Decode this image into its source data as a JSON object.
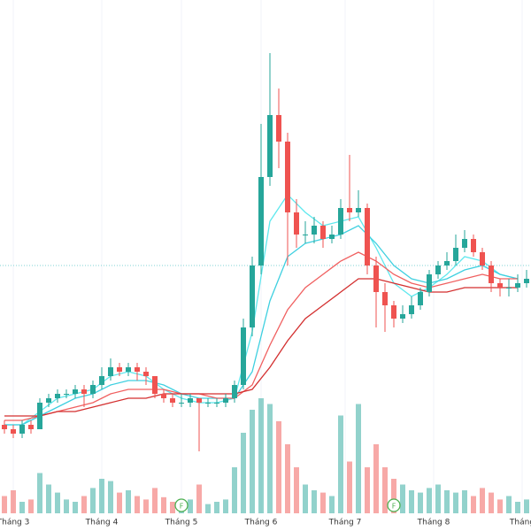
{
  "chart_data": {
    "type": "candlestick",
    "up_color": "#26a69a",
    "down_color": "#ef5350",
    "xlim": [
      -0.5,
      59.5
    ],
    "ylim": [
      0,
      100
    ],
    "vlim": [
      0,
      100
    ],
    "grid": true,
    "xticks": [
      {
        "value": 1,
        "label": "Tháng 3"
      },
      {
        "value": 11,
        "label": "Tháng 4"
      },
      {
        "value": 20,
        "label": "Tháng 5"
      },
      {
        "value": 29,
        "label": "Tháng 6"
      },
      {
        "value": 38.5,
        "label": "Tháng 7"
      },
      {
        "value": 48.5,
        "label": "Tháng 8"
      },
      {
        "value": 58.5,
        "label": "Tháng"
      }
    ],
    "ohlc": [
      [
        4,
        5,
        2,
        3
      ],
      [
        3,
        4,
        1,
        2
      ],
      [
        2,
        5,
        1,
        4
      ],
      [
        4,
        5,
        2,
        3
      ],
      [
        3,
        10,
        3,
        9
      ],
      [
        9,
        11,
        8,
        10
      ],
      [
        10,
        12,
        9,
        11
      ],
      [
        11,
        12,
        10,
        11
      ],
      [
        11,
        13,
        10,
        12
      ],
      [
        12,
        13,
        8,
        11
      ],
      [
        11,
        14,
        10,
        13
      ],
      [
        13,
        17,
        12,
        15
      ],
      [
        15,
        19,
        14,
        17
      ],
      [
        17,
        18,
        15,
        16
      ],
      [
        16,
        18,
        15,
        17
      ],
      [
        17,
        18,
        14,
        16
      ],
      [
        16,
        17,
        13,
        15
      ],
      [
        15,
        15,
        10,
        11
      ],
      [
        11,
        12,
        9,
        10
      ],
      [
        10,
        11,
        8,
        9
      ],
      [
        9,
        11,
        8,
        9
      ],
      [
        9,
        11,
        8,
        10
      ],
      [
        10,
        10,
        -2,
        9
      ],
      [
        9,
        10,
        8,
        9
      ],
      [
        9,
        10,
        8,
        9
      ],
      [
        9,
        11,
        8,
        10
      ],
      [
        10,
        14,
        9,
        13
      ],
      [
        13,
        28,
        12,
        26
      ],
      [
        26,
        42,
        24,
        40
      ],
      [
        40,
        72,
        38,
        60
      ],
      [
        60,
        88,
        58,
        74
      ],
      [
        74,
        80,
        62,
        68
      ],
      [
        68,
        70,
        40,
        52
      ],
      [
        52,
        55,
        44,
        47
      ],
      [
        47,
        50,
        45,
        47
      ],
      [
        47,
        51,
        45,
        49
      ],
      [
        49,
        50,
        44,
        46
      ],
      [
        46,
        49,
        45,
        47
      ],
      [
        47,
        55,
        46,
        53
      ],
      [
        53,
        65,
        50,
        52
      ],
      [
        52,
        57,
        51,
        53
      ],
      [
        53,
        54,
        38,
        40
      ],
      [
        40,
        42,
        26,
        34
      ],
      [
        34,
        36,
        25,
        31
      ],
      [
        31,
        32,
        26,
        28
      ],
      [
        28,
        31,
        27,
        29
      ],
      [
        29,
        33,
        28,
        31
      ],
      [
        31,
        35,
        30,
        34
      ],
      [
        34,
        39,
        33,
        38
      ],
      [
        38,
        41,
        37,
        40
      ],
      [
        40,
        43,
        39,
        41
      ],
      [
        41,
        47,
        40,
        44
      ],
      [
        44,
        48,
        43,
        46
      ],
      [
        46,
        47,
        42,
        43
      ],
      [
        43,
        44,
        39,
        40
      ],
      [
        40,
        41,
        34,
        36
      ],
      [
        36,
        37,
        33,
        35
      ],
      [
        35,
        37,
        33,
        35
      ],
      [
        35,
        38,
        34,
        36
      ],
      [
        36,
        39,
        35,
        37
      ]
    ],
    "volume": [
      15,
      20,
      10,
      12,
      35,
      25,
      18,
      12,
      10,
      15,
      22,
      30,
      28,
      18,
      20,
      15,
      12,
      22,
      14,
      10,
      10,
      12,
      25,
      8,
      10,
      12,
      40,
      70,
      90,
      100,
      95,
      80,
      60,
      40,
      25,
      20,
      18,
      15,
      85,
      45,
      95,
      40,
      60,
      40,
      30,
      25,
      20,
      18,
      22,
      25,
      20,
      18,
      20,
      15,
      22,
      18,
      12,
      15,
      10,
      12
    ],
    "ma_x": [
      0,
      2,
      4,
      6,
      8,
      10,
      12,
      14,
      16,
      18,
      20,
      22,
      24,
      26,
      28,
      30,
      32,
      34,
      36,
      38,
      40,
      42,
      44,
      46,
      48,
      50,
      52,
      54,
      56,
      58
    ],
    "ma": [
      {
        "color": "#5ee8ee",
        "values": [
          4,
          4,
          7,
          10,
          11,
          12,
          15,
          16,
          15,
          12,
          10,
          9,
          9,
          10,
          25,
          50,
          56,
          52,
          49,
          50,
          51,
          44,
          36,
          33,
          35,
          38,
          42,
          41,
          38,
          37
        ]
      },
      {
        "color": "#3fd0e0",
        "values": [
          4,
          4,
          6,
          8,
          10,
          11,
          13,
          14,
          14,
          13,
          11,
          10,
          10,
          10,
          16,
          32,
          42,
          45,
          46,
          47,
          49,
          45,
          40,
          37,
          36,
          37,
          39,
          40,
          38,
          37
        ]
      },
      {
        "color": "#f06060",
        "values": [
          5,
          5,
          6,
          7,
          8,
          9,
          11,
          12,
          12,
          12,
          11,
          11,
          10,
          10,
          13,
          22,
          30,
          35,
          38,
          41,
          43,
          41,
          38,
          36,
          35,
          36,
          37,
          38,
          37,
          37
        ]
      },
      {
        "color": "#d32f2f",
        "values": [
          6,
          6,
          6,
          7,
          7,
          8,
          9,
          10,
          10,
          11,
          11,
          11,
          11,
          11,
          12,
          17,
          23,
          28,
          31,
          34,
          37,
          37,
          36,
          35,
          34,
          34,
          35,
          35,
          35,
          35
        ]
      }
    ],
    "price_line": 40,
    "events": [
      {
        "index": 20,
        "label": "F"
      },
      {
        "index": 44,
        "label": "F"
      }
    ]
  }
}
